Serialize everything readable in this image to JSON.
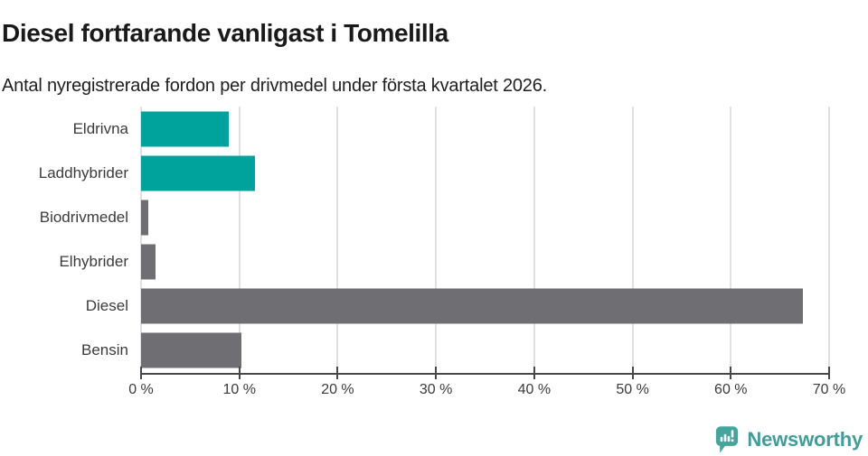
{
  "header": {
    "title": "Diesel fortfarande vanligast i Tomelilla",
    "subtitle": "Antal nyregistrerade fordon per drivmedel under första kvartalet 2026."
  },
  "chart_data": {
    "type": "bar",
    "orientation": "horizontal",
    "title": "Diesel fortfarande vanligast i Tomelilla",
    "subtitle": "Antal nyregistrerade fordon per drivmedel under första kvartalet 2026.",
    "categories": [
      "Eldrivna",
      "Laddhybrider",
      "Biodrivmedel",
      "Elhybrider",
      "Diesel",
      "Bensin"
    ],
    "values": [
      8.9,
      11.6,
      0.7,
      1.5,
      67.3,
      10.2
    ],
    "unit": "%",
    "bar_colors": [
      "#00a39b",
      "#00a39b",
      "#6e6e73",
      "#6e6e73",
      "#6e6e73",
      "#6e6e73"
    ],
    "xlim": [
      0,
      70
    ],
    "x_tick_labels": [
      "0 %",
      "10 %",
      "20 %",
      "30 %",
      "40 %",
      "50 %",
      "60 %",
      "70 %"
    ],
    "grid": "vertical",
    "legend": "none"
  },
  "footer": {
    "brand": "Newsworthy"
  },
  "icons": {
    "logo": "newsworthy-speech-bubble-bar-chart-icon"
  },
  "colors": {
    "teal": "#00a39b",
    "gray": "#6e6e73",
    "gridline": "#e0e0e0",
    "axis": "#47474c",
    "label_text": "#3b3b3b",
    "title_text": "#1a1a1a",
    "brand_teal": "#3f9e99",
    "logo_bubble": "#45a59d"
  }
}
